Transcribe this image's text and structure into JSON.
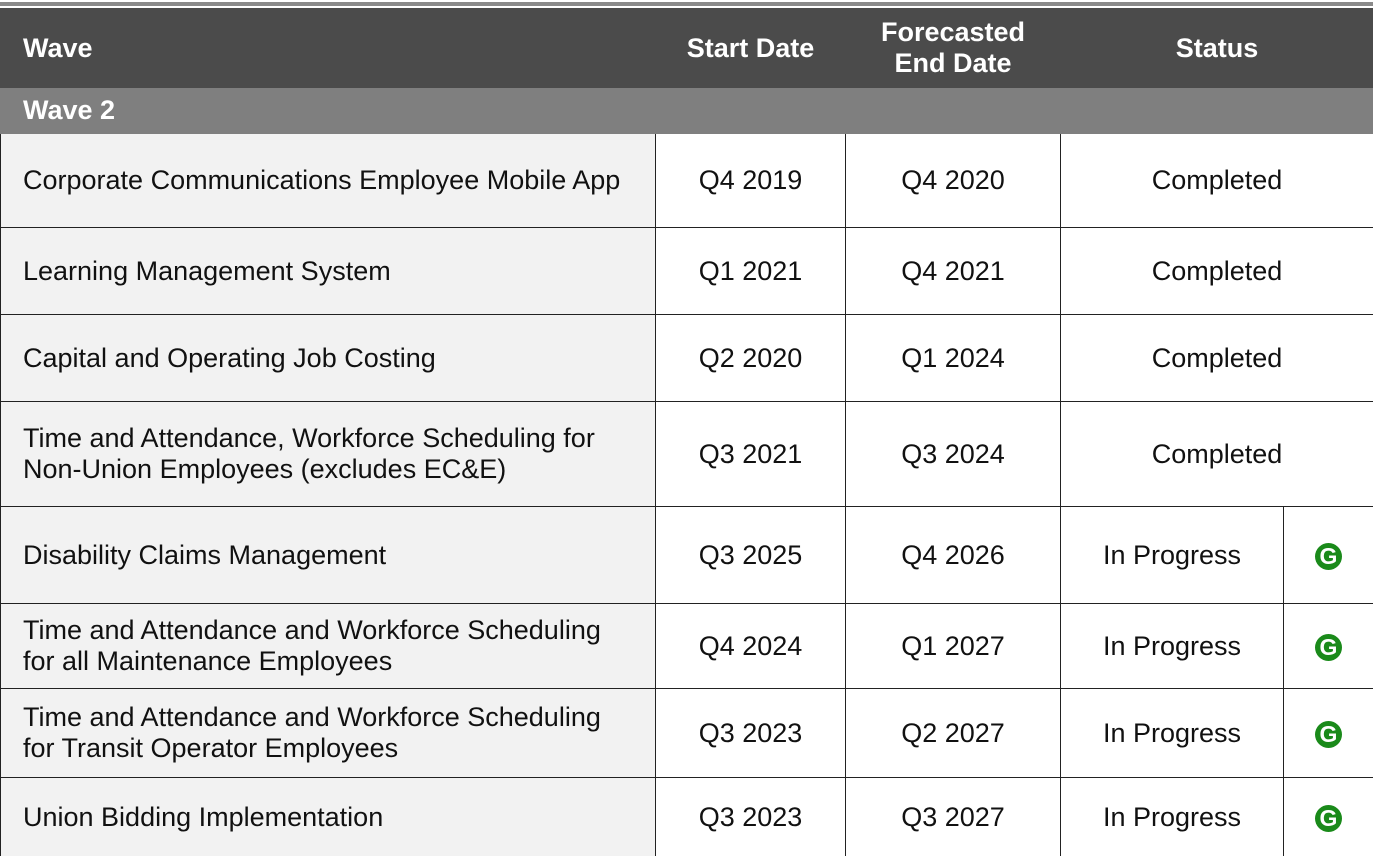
{
  "table": {
    "header": [
      "Wave",
      "Start Date",
      "Forecasted End Date",
      "Status"
    ],
    "group": "Wave 2",
    "rows": [
      {
        "name": "Corporate Communications Employee Mobile App",
        "start": "Q4 2019",
        "end": "Q4 2020",
        "status": "Completed"
      },
      {
        "name": "Learning Management System",
        "start": "Q1 2021",
        "end": "Q4 2021",
        "status": "Completed"
      },
      {
        "name": "Capital and Operating Job Costing",
        "start": "Q2 2020",
        "end": "Q1 2024",
        "status": "Completed"
      },
      {
        "name": "Time and Attendance, Workforce Scheduling for Non-Union Employees (excludes EC&E)",
        "start": "Q3 2021",
        "end": "Q3 2024",
        "status": "Completed"
      },
      {
        "name": "Disability Claims Management",
        "start": "Q3 2025",
        "end": "Q4 2026",
        "status": "In Progress",
        "indicator": "G"
      },
      {
        "name": "Time and Attendance and Workforce Scheduling for all Maintenance Employees",
        "start": "Q4 2024",
        "end": "Q1 2027",
        "status": "In Progress",
        "indicator": "G"
      },
      {
        "name": "Time and Attendance and Workforce Scheduling for Transit Operator Employees",
        "start": "Q3 2023",
        "end": "Q2 2027",
        "status": "In Progress",
        "indicator": "G"
      },
      {
        "name": "Union Bidding Implementation",
        "start": "Q3 2023",
        "end": "Q3 2027",
        "status": "In Progress",
        "indicator": "G"
      }
    ]
  }
}
